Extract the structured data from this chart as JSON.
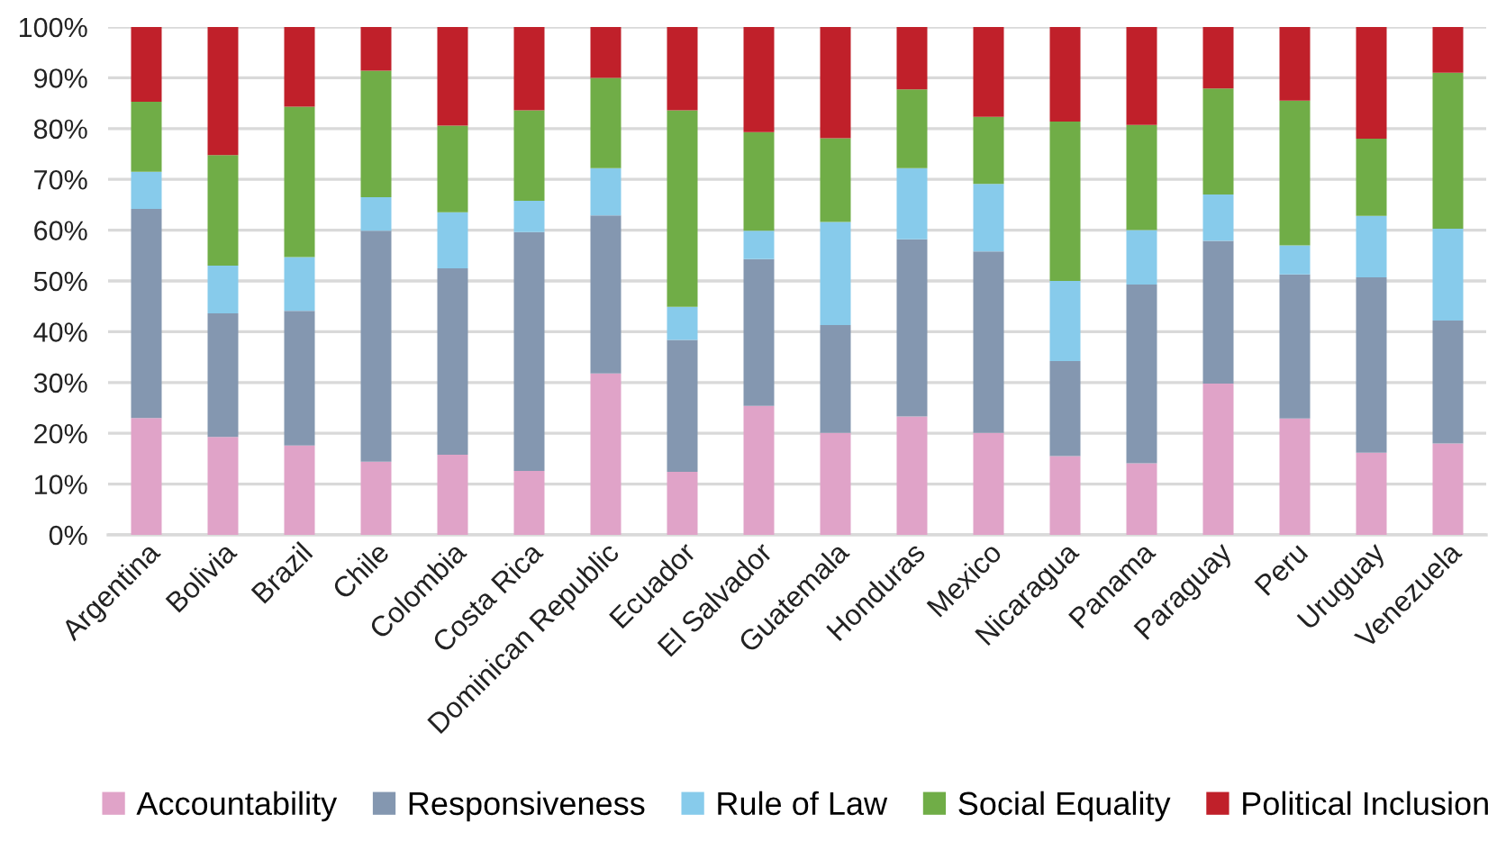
{
  "chart_data": {
    "type": "bar",
    "stacked": true,
    "categories": [
      "Argentina",
      "Bolivia",
      "Brazil",
      "Chile",
      "Colombia",
      "Costa Rica",
      "Dominican Republic",
      "Ecuador",
      "El Salvador",
      "Guatemala",
      "Honduras",
      "Mexico",
      "Nicaragua",
      "Panama",
      "Paraguay",
      "Peru",
      "Uruguay",
      "Venezuela"
    ],
    "series": [
      {
        "name": "Accountability",
        "color": "#e0a3c8",
        "values": [
          23.0,
          19.3,
          17.6,
          14.4,
          15.8,
          12.6,
          31.8,
          12.4,
          25.4,
          20.1,
          23.3,
          20.1,
          15.5,
          14.1,
          29.8,
          22.9,
          16.2,
          18.0
        ]
      },
      {
        "name": "Responsiveness",
        "color": "#8497b0",
        "values": [
          41.2,
          24.3,
          26.5,
          45.5,
          36.7,
          47.0,
          31.1,
          26.0,
          28.9,
          21.2,
          34.9,
          35.7,
          18.7,
          35.2,
          28.1,
          28.4,
          34.5,
          24.2
        ]
      },
      {
        "name": "Rule of Law",
        "color": "#87cbeb",
        "values": [
          7.3,
          9.4,
          10.6,
          6.6,
          11.0,
          6.2,
          9.3,
          6.5,
          5.6,
          20.3,
          14.0,
          13.3,
          15.8,
          10.7,
          9.1,
          5.7,
          12.1,
          18.1
        ]
      },
      {
        "name": "Social Equality",
        "color": "#70ad47",
        "values": [
          13.8,
          21.8,
          29.6,
          24.9,
          17.1,
          17.8,
          17.8,
          38.7,
          19.4,
          16.5,
          15.5,
          13.2,
          31.4,
          20.7,
          20.9,
          28.5,
          15.2,
          30.7
        ]
      },
      {
        "name": "Political Inclusion",
        "color": "#c0202a",
        "values": [
          14.7,
          25.2,
          15.7,
          8.6,
          19.4,
          16.4,
          10.0,
          16.4,
          20.7,
          21.9,
          12.3,
          17.7,
          18.6,
          19.3,
          12.1,
          14.5,
          22.0,
          9.0
        ]
      }
    ],
    "ylim": [
      0,
      100
    ],
    "yticks": [
      {
        "value": 0,
        "label": "0%"
      },
      {
        "value": 10,
        "label": "10%"
      },
      {
        "value": 20,
        "label": "20%"
      },
      {
        "value": 30,
        "label": "30%"
      },
      {
        "value": 40,
        "label": "40%"
      },
      {
        "value": 50,
        "label": "50%"
      },
      {
        "value": 60,
        "label": "60%"
      },
      {
        "value": 70,
        "label": "70%"
      },
      {
        "value": 80,
        "label": "80%"
      },
      {
        "value": 90,
        "label": "90%"
      },
      {
        "value": 100,
        "label": "100%"
      }
    ],
    "grid": "y",
    "legend": "bottom"
  }
}
